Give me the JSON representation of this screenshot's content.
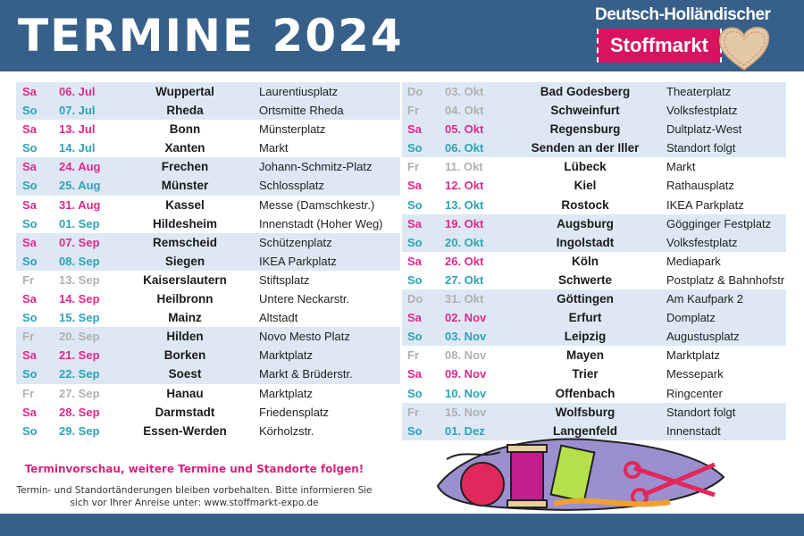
{
  "header": {
    "title": "TERMINE 2024",
    "logo_top": "Deutsch-Holländischer",
    "logo_band": "Stoffmarkt"
  },
  "colors": {
    "header": "#366089",
    "saturday": "#e0288a",
    "sunday": "#2ba3b5",
    "weekday": "#b0b0b0",
    "band": "#dde8f4"
  },
  "left": [
    {
      "day": "Sa",
      "date": "06. Jul",
      "city": "Wuppertal",
      "place": "Laurentiusplatz",
      "band": true
    },
    {
      "day": "So",
      "date": "07. Jul",
      "city": "Rheda",
      "place": "Ortsmitte Rheda",
      "band": true
    },
    {
      "day": "Sa",
      "date": "13. Jul",
      "city": "Bonn",
      "place": "Münsterplatz",
      "band": false
    },
    {
      "day": "So",
      "date": "14. Jul",
      "city": "Xanten",
      "place": "Markt",
      "band": false
    },
    {
      "day": "Sa",
      "date": "24. Aug",
      "city": "Frechen",
      "place": "Johann-Schmitz-Platz",
      "band": true
    },
    {
      "day": "So",
      "date": "25. Aug",
      "city": "Münster",
      "place": "Schlossplatz",
      "band": true
    },
    {
      "day": "Sa",
      "date": "31. Aug",
      "city": "Kassel",
      "place": "Messe (Damschkestr.)",
      "band": false
    },
    {
      "day": "So",
      "date": "01. Sep",
      "city": "Hildesheim",
      "place": "Innenstadt (Hoher Weg)",
      "band": false
    },
    {
      "day": "Sa",
      "date": "07. Sep",
      "city": "Remscheid",
      "place": "Schützenplatz",
      "band": true
    },
    {
      "day": "So",
      "date": "08. Sep",
      "city": "Siegen",
      "place": "IKEA Parkplatz",
      "band": true
    },
    {
      "day": "Fr",
      "date": "13. Sep",
      "city": "Kaiserslautern",
      "place": "Stiftsplatz",
      "band": false
    },
    {
      "day": "Sa",
      "date": "14. Sep",
      "city": "Heilbronn",
      "place": "Untere Neckarstr.",
      "band": false
    },
    {
      "day": "So",
      "date": "15. Sep",
      "city": "Mainz",
      "place": "Altstadt",
      "band": false
    },
    {
      "day": "Fr",
      "date": "20. Sep",
      "city": "Hilden",
      "place": "Novo Mesto Platz",
      "band": true
    },
    {
      "day": "Sa",
      "date": "21. Sep",
      "city": "Borken",
      "place": "Marktplatz",
      "band": true
    },
    {
      "day": "So",
      "date": "22. Sep",
      "city": "Soest",
      "place": "Markt & Brüderstr.",
      "band": true
    },
    {
      "day": "Fr",
      "date": "27. Sep",
      "city": "Hanau",
      "place": "Marktplatz",
      "band": false
    },
    {
      "day": "Sa",
      "date": "28. Sep",
      "city": "Darmstadt",
      "place": "Friedensplatz",
      "band": false
    },
    {
      "day": "So",
      "date": "29. Sep",
      "city": "Essen-Werden",
      "place": "Körholzstr.",
      "band": false
    }
  ],
  "right": [
    {
      "day": "Do",
      "date": "03. Okt",
      "city": "Bad Godesberg",
      "place": "Theaterplatz",
      "band": true
    },
    {
      "day": "Fr",
      "date": "04. Okt",
      "city": "Schweinfurt",
      "place": "Volksfestplatz",
      "band": true
    },
    {
      "day": "Sa",
      "date": "05. Okt",
      "city": "Regensburg",
      "place": "Dultplatz-West",
      "band": true
    },
    {
      "day": "So",
      "date": "06. Okt",
      "city": "Senden an der Iller",
      "place": "Standort folgt",
      "band": true
    },
    {
      "day": "Fr",
      "date": "11. Okt",
      "city": "Lübeck",
      "place": "Markt",
      "band": false
    },
    {
      "day": "Sa",
      "date": "12. Okt",
      "city": "Kiel",
      "place": "Rathausplatz",
      "band": false
    },
    {
      "day": "So",
      "date": "13. Okt",
      "city": "Rostock",
      "place": "IKEA Parkplatz",
      "band": false
    },
    {
      "day": "Sa",
      "date": "19. Okt",
      "city": "Augsburg",
      "place": "Gögginger Festplatz",
      "band": true
    },
    {
      "day": "So",
      "date": "20. Okt",
      "city": "Ingolstadt",
      "place": "Volksfestplatz",
      "band": true
    },
    {
      "day": "Sa",
      "date": "26. Okt",
      "city": "Köln",
      "place": "Mediapark",
      "band": false
    },
    {
      "day": "So",
      "date": "27. Okt",
      "city": "Schwerte",
      "place": "Postplatz & Bahnhofstr",
      "band": false
    },
    {
      "day": "Do",
      "date": "31. Okt",
      "city": "Göttingen",
      "place": "Am Kaufpark 2",
      "band": true
    },
    {
      "day": "Sa",
      "date": "02. Nov",
      "city": "Erfurt",
      "place": "Domplatz",
      "band": true
    },
    {
      "day": "So",
      "date": "03. Nov",
      "city": "Leipzig",
      "place": "Augustusplatz",
      "band": true
    },
    {
      "day": "Fr",
      "date": "08. Nov",
      "city": "Mayen",
      "place": "Marktplatz",
      "band": false
    },
    {
      "day": "Sa",
      "date": "09. Nov",
      "city": "Trier",
      "place": "Messepark",
      "band": false
    },
    {
      "day": "So",
      "date": "10. Nov",
      "city": "Offenbach",
      "place": "Ringcenter",
      "band": false
    },
    {
      "day": "Fr",
      "date": "15. Nov",
      "city": "Wolfsburg",
      "place": "Standort folgt",
      "band": true
    },
    {
      "day": "So",
      "date": "01. Dez",
      "city": "Langenfeld",
      "place": "Innenstadt",
      "band": true
    }
  ],
  "notes": {
    "preview": "Terminvorschau, weitere Termine und Standorte folgen!",
    "disclaimer": "Termin- und Standortänderungen bleiben vorbehalten. Bitte informieren Sie sich vor Ihrer Anreise unter: www.stoffmarkt-expo.de"
  }
}
